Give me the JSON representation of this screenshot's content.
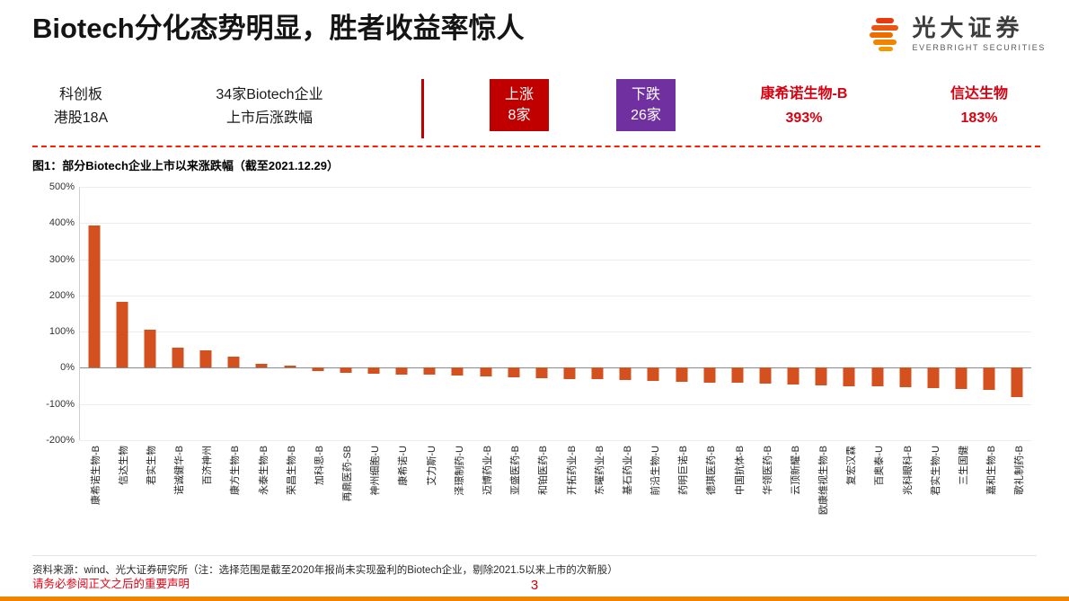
{
  "page": {
    "title": "Biotech分化态势明显，胜者收益率惊人",
    "page_number": "3",
    "disclaimer": "请务必参阅正文之后的重要声明"
  },
  "logo": {
    "name_cn": "光大证券",
    "name_en": "EVERBRIGHT SECURITIES"
  },
  "infobar": {
    "board": {
      "line1": "科创板",
      "line2": "港股18A"
    },
    "scope": {
      "line1": "34家Biotech企业",
      "line2": "上市后涨跌幅"
    },
    "up_badge": {
      "label": "上涨",
      "count": "8家",
      "color": "#c00000"
    },
    "down_badge": {
      "label": "下跌",
      "count": "26家",
      "color": "#7030a0"
    },
    "top1": {
      "name": "康希诺生物-B",
      "value": "393%"
    },
    "top2": {
      "name": "信达生物",
      "value": "183%"
    }
  },
  "figure": {
    "caption": "图1：部分Biotech企业上市以来涨跌幅（截至2021.12.29）",
    "source": "资料来源：wind、光大证券研究所（注：选择范围是截至2020年报尚未实现盈利的Biotech企业，剔除2021.5以来上市的次新股）"
  },
  "colors": {
    "accent_red": "#c00000",
    "purple": "#7030a0",
    "text_red": "#d7000f",
    "footer_orange": "#f08300"
  },
  "chart_data": {
    "type": "bar",
    "title": "部分Biotech企业上市以来涨跌幅（截至2021.12.29）",
    "xlabel": "",
    "ylabel": "涨跌幅",
    "ylim": [
      -200,
      500
    ],
    "yticks": [
      500,
      400,
      300,
      200,
      100,
      0,
      -100,
      -200
    ],
    "ytick_format": "percent",
    "grid": true,
    "legend": false,
    "bar_color": "#d4501e",
    "categories": [
      "康希诺生物-B",
      "信达生物",
      "君实生物",
      "诺诚健华-B",
      "百济神州",
      "康方生物-B",
      "永泰生物-B",
      "荣昌生物-B",
      "加科思-B",
      "再鼎医药-SB",
      "神州细胞-U",
      "康希诺-U",
      "艾力斯-U",
      "泽璟制药-U",
      "迈博药业-B",
      "亚盛医药-B",
      "和铂医药-B",
      "开拓药业-B",
      "东曜药业-B",
      "基石药业-B",
      "前沿生物-U",
      "药明巨诺-B",
      "德琪医药-B",
      "中国抗体-B",
      "华领医药-B",
      "云顶新耀-B",
      "欧康维视生物-B",
      "复宏汉霖",
      "百奥泰-U",
      "兆科眼科-B",
      "君实生物-U",
      "三生国健",
      "嘉和生物-B",
      "歌礼制药-B"
    ],
    "values": [
      393,
      183,
      105,
      55,
      48,
      30,
      12,
      6,
      -8,
      -13,
      -16,
      -18,
      -20,
      -22,
      -24,
      -26,
      -28,
      -30,
      -32,
      -34,
      -36,
      -38,
      -40,
      -42,
      -44,
      -46,
      -48,
      -50,
      -52,
      -54,
      -56,
      -58,
      -62,
      -80
    ]
  }
}
